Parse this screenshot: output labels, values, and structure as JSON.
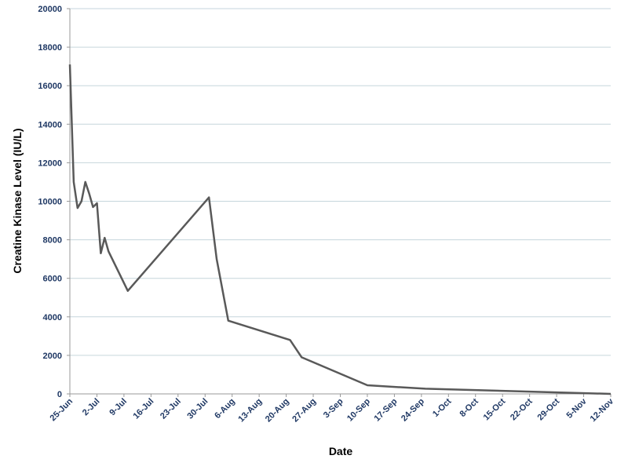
{
  "chart_data": {
    "type": "line",
    "xlabel": "Date",
    "ylabel": "Creatine Kinase Level (IU/L)",
    "ylim": [
      0,
      20000
    ],
    "y_ticks": [
      0,
      2000,
      4000,
      6000,
      8000,
      10000,
      12000,
      14000,
      16000,
      18000,
      20000
    ],
    "x_tick_labels": [
      "25-Jun",
      "2-Jul",
      "9-Jul",
      "16-Jul",
      "23-Jul",
      "30-Jul",
      "6-Aug",
      "13-Aug",
      "20-Aug",
      "27-Aug",
      "3-Sep",
      "10-Sep",
      "17-Sep",
      "24-Sep",
      "1-Oct",
      "8-Oct",
      "15-Oct",
      "22-Oct",
      "29-Oct",
      "5-Nov",
      "12-Nov"
    ],
    "x_tick_dates": [
      "06-25",
      "07-02",
      "07-09",
      "07-16",
      "07-23",
      "07-30",
      "08-06",
      "08-13",
      "08-20",
      "08-27",
      "09-03",
      "09-10",
      "09-17",
      "09-24",
      "10-01",
      "10-08",
      "10-15",
      "10-22",
      "10-29",
      "11-05",
      "11-12"
    ],
    "grid": true,
    "legend": "none",
    "line_color": "#595959",
    "tick_label_color": "#1f3864",
    "grid_color": "#c6d6dc",
    "series": [
      {
        "x": [
          "06-25",
          "06-26",
          "06-27",
          "06-28",
          "06-29",
          "06-30",
          "07-01",
          "07-02",
          "07-03",
          "07-04",
          "07-05",
          "07-10",
          "07-31",
          "08-02",
          "08-05",
          "08-21",
          "08-24",
          "09-10",
          "09-25",
          "11-12"
        ],
        "y": [
          17100,
          11000,
          9650,
          10000,
          11000,
          10400,
          9700,
          9900,
          7300,
          8100,
          7400,
          5350,
          10200,
          7000,
          3800,
          2800,
          1900,
          450,
          270,
          0
        ]
      }
    ]
  }
}
